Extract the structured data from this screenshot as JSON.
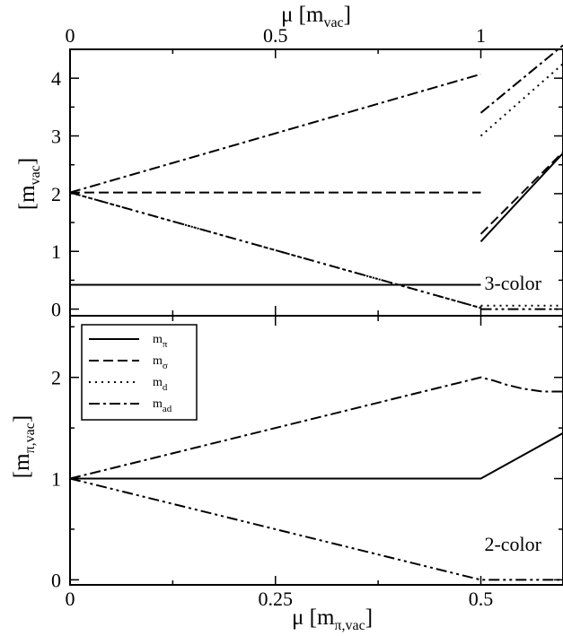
{
  "chart_data": [
    {
      "panel": "top",
      "type": "line",
      "annotation": "3-color",
      "xlabel": "μ [m_vac]",
      "xlabel_parts": {
        "main": "μ [m",
        "sub": "vac",
        "close": "]"
      },
      "ylabel": "[m_vac]",
      "ylabel_parts": {
        "main": "[m",
        "sub": "vac",
        "close": "]"
      },
      "xlim": [
        0,
        1.2
      ],
      "ylim": [
        -0.1,
        4.5
      ],
      "xticks": [
        0,
        0.5,
        1
      ],
      "xtick_labels": [
        "0",
        "0.5",
        "1"
      ],
      "yticks": [
        0,
        1,
        2,
        3,
        4
      ],
      "ytick_labels": [
        "0",
        "1",
        "2",
        "3",
        "4"
      ],
      "series": [
        {
          "key": "m_pi",
          "style": "solid",
          "segments": [
            [
              [
                0,
                0.42
              ],
              [
                1.0,
                0.42
              ]
            ],
            [
              [
                1.0,
                1.17
              ],
              [
                1.2,
                2.7
              ]
            ]
          ]
        },
        {
          "key": "m_sigma",
          "style": "dashed",
          "segments": [
            [
              [
                0,
                2.02
              ],
              [
                1.0,
                2.02
              ]
            ],
            [
              [
                1.0,
                1.3
              ],
              [
                1.2,
                2.72
              ]
            ]
          ]
        },
        {
          "key": "m_d",
          "style": "dotted",
          "segments": [
            [
              [
                0,
                2.02
              ],
              [
                1.0,
                0.02
              ]
            ],
            [
              [
                1.0,
                0.06
              ],
              [
                1.2,
                0.06
              ]
            ],
            [
              [
                1.0,
                3.0
              ],
              [
                1.2,
                4.25
              ]
            ]
          ]
        },
        {
          "key": "m_ad",
          "style": "dashdot",
          "segments": [
            [
              [
                0,
                2.02
              ],
              [
                1.0,
                4.07
              ]
            ],
            [
              [
                1.0,
                3.4
              ],
              [
                1.2,
                4.57
              ]
            ]
          ]
        },
        {
          "key": "m_d_lower",
          "style": "dashdotdot",
          "segments": [
            [
              [
                0,
                2.02
              ],
              [
                1.0,
                0.02
              ]
            ],
            [
              [
                1.0,
                0.0
              ],
              [
                1.2,
                0.0
              ]
            ]
          ]
        }
      ]
    },
    {
      "panel": "bottom",
      "type": "line",
      "annotation": "2-color",
      "xlabel": "μ [m_π,vac]",
      "xlabel_parts": {
        "main": "μ [m",
        "sub": "π,vac",
        "close": "]"
      },
      "ylabel": "[m_π,vac]",
      "ylabel_parts": {
        "main": "[m",
        "sub": "π,vac",
        "close": "]"
      },
      "xlim": [
        0,
        0.6
      ],
      "ylim": [
        -0.05,
        2.6
      ],
      "xticks": [
        0,
        0.25,
        0.5
      ],
      "xtick_labels": [
        "0",
        "0.25",
        "0.5"
      ],
      "yticks": [
        0,
        1,
        2
      ],
      "ytick_labels": [
        "0",
        "1",
        "2"
      ],
      "series": [
        {
          "key": "m_pi",
          "style": "solid",
          "segments": [
            [
              [
                0,
                1.0
              ],
              [
                0.5,
                1.0
              ],
              [
                0.6,
                1.45
              ]
            ]
          ]
        },
        {
          "key": "m_ad",
          "style": "dashdot",
          "segments": [
            [
              [
                0,
                1.0
              ],
              [
                0.5,
                2.0
              ],
              [
                0.515,
                1.97
              ],
              [
                0.53,
                1.93
              ],
              [
                0.55,
                1.89
              ],
              [
                0.575,
                1.86
              ],
              [
                0.6,
                1.86
              ]
            ]
          ]
        },
        {
          "key": "m_d",
          "style": "dashdotdot",
          "segments": [
            [
              [
                0,
                1.0
              ],
              [
                0.5,
                0.0
              ],
              [
                0.6,
                0.0
              ]
            ]
          ]
        }
      ],
      "legend": {
        "placement": "top-left",
        "entries": [
          {
            "key": "m_pi",
            "main": "m",
            "sub": "π",
            "style": "solid"
          },
          {
            "key": "m_sigma",
            "main": "m",
            "sub": "σ",
            "style": "dashed"
          },
          {
            "key": "m_d",
            "main": "m",
            "sub": "d",
            "style": "dotted"
          },
          {
            "key": "m_ad",
            "main": "m",
            "sub": "ad",
            "style": "dashdot"
          }
        ]
      }
    }
  ]
}
